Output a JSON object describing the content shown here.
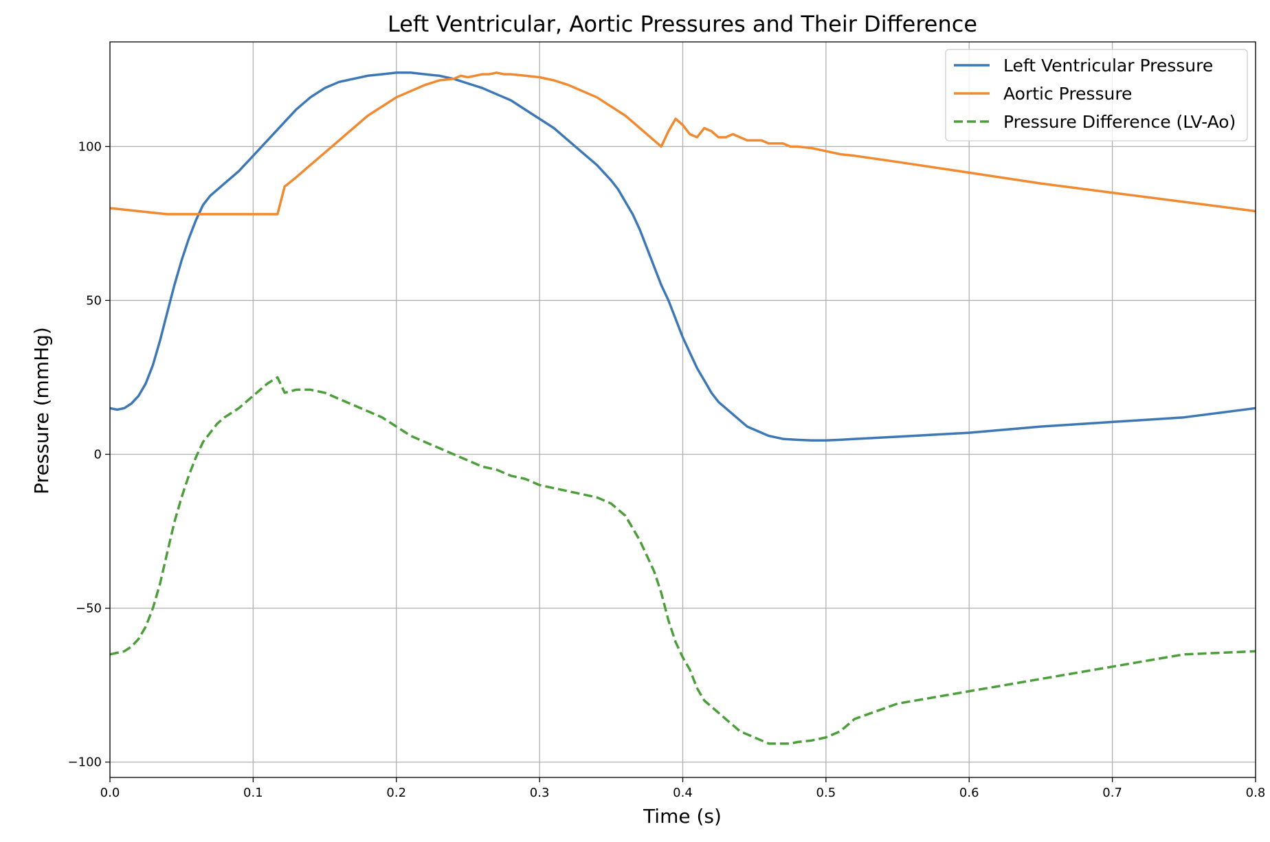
{
  "chart_data": {
    "type": "line",
    "title": "Left Ventricular, Aortic Pressures and Their Difference",
    "xlabel": "Time (s)",
    "ylabel": "Pressure (mmHg)",
    "xlim": [
      0.0,
      0.8
    ],
    "ylim": [
      -105,
      134
    ],
    "xticks": [
      0.0,
      0.1,
      0.2,
      0.3,
      0.4,
      0.5,
      0.6,
      0.7,
      0.8
    ],
    "xtick_labels": [
      "0.0",
      "0.1",
      "0.2",
      "0.3",
      "0.4",
      "0.5",
      "0.6",
      "0.7",
      "0.8"
    ],
    "yticks": [
      100,
      50,
      0,
      -50,
      -100
    ],
    "ytick_labels": [
      "100",
      "50",
      "0",
      "−50",
      "−100"
    ],
    "grid": true,
    "legend_position": "top-right",
    "series": [
      {
        "name": "Left Ventricular Pressure",
        "color": "#3d78b5",
        "style": "solid",
        "x": [
          0.0,
          0.005,
          0.01,
          0.015,
          0.02,
          0.025,
          0.03,
          0.035,
          0.04,
          0.045,
          0.05,
          0.055,
          0.06,
          0.065,
          0.07,
          0.075,
          0.08,
          0.09,
          0.1,
          0.11,
          0.12,
          0.13,
          0.14,
          0.15,
          0.16,
          0.17,
          0.18,
          0.19,
          0.2,
          0.21,
          0.22,
          0.23,
          0.24,
          0.25,
          0.26,
          0.27,
          0.28,
          0.29,
          0.3,
          0.31,
          0.32,
          0.33,
          0.34,
          0.35,
          0.355,
          0.36,
          0.365,
          0.37,
          0.375,
          0.38,
          0.385,
          0.39,
          0.395,
          0.4,
          0.405,
          0.41,
          0.415,
          0.42,
          0.425,
          0.43,
          0.435,
          0.44,
          0.445,
          0.45,
          0.455,
          0.46,
          0.465,
          0.47,
          0.48,
          0.49,
          0.5,
          0.51,
          0.52,
          0.55,
          0.6,
          0.65,
          0.7,
          0.75,
          0.8
        ],
        "y": [
          15,
          14.5,
          15,
          16.5,
          19,
          23,
          29,
          37,
          46,
          55,
          63,
          70,
          76,
          81,
          84,
          86,
          88,
          92,
          97,
          102,
          107,
          112,
          116,
          119,
          121,
          122,
          123,
          123.5,
          124,
          124,
          123.5,
          123,
          122,
          120.5,
          119,
          117,
          115,
          112,
          109,
          106,
          102,
          98,
          94,
          89,
          86,
          82,
          78,
          73,
          67,
          61,
          55,
          50,
          44,
          38,
          33,
          28,
          24,
          20,
          17,
          15,
          13,
          11,
          9,
          8,
          7,
          6,
          5.5,
          5,
          4.7,
          4.5,
          4.5,
          4.7,
          5,
          5.7,
          7,
          9,
          10.5,
          12,
          15
        ]
      },
      {
        "name": "Aortic Pressure",
        "color": "#ef8a31",
        "style": "solid",
        "x": [
          0.0,
          0.02,
          0.04,
          0.06,
          0.08,
          0.1,
          0.117,
          0.122,
          0.13,
          0.14,
          0.15,
          0.16,
          0.17,
          0.18,
          0.19,
          0.2,
          0.21,
          0.22,
          0.23,
          0.24,
          0.245,
          0.25,
          0.255,
          0.26,
          0.265,
          0.27,
          0.275,
          0.28,
          0.29,
          0.3,
          0.31,
          0.32,
          0.33,
          0.34,
          0.35,
          0.36,
          0.37,
          0.38,
          0.385,
          0.39,
          0.395,
          0.4,
          0.405,
          0.41,
          0.415,
          0.42,
          0.425,
          0.43,
          0.435,
          0.44,
          0.445,
          0.45,
          0.455,
          0.46,
          0.465,
          0.47,
          0.475,
          0.48,
          0.49,
          0.5,
          0.51,
          0.52,
          0.55,
          0.6,
          0.65,
          0.7,
          0.75,
          0.8
        ],
        "y": [
          80,
          79,
          78,
          78,
          78,
          78,
          78,
          87,
          90,
          94,
          98,
          102,
          106,
          110,
          113,
          116,
          118,
          120,
          121.5,
          122,
          123,
          122.5,
          123,
          123.5,
          123.5,
          124,
          123.5,
          123.5,
          123,
          122.5,
          121.5,
          120,
          118,
          116,
          113,
          110,
          106,
          102,
          100,
          105,
          109,
          107,
          104,
          103,
          106,
          105,
          103,
          103,
          104,
          103,
          102,
          102,
          102,
          101,
          101,
          101,
          100,
          100,
          99.5,
          98.5,
          97.5,
          97,
          95,
          91.5,
          88,
          85,
          82,
          79
        ]
      },
      {
        "name": "Pressure Difference (LV-Ao)",
        "color": "#4c9e3a",
        "style": "dashed",
        "x": [
          0.0,
          0.005,
          0.01,
          0.015,
          0.02,
          0.025,
          0.03,
          0.035,
          0.04,
          0.045,
          0.05,
          0.055,
          0.06,
          0.065,
          0.07,
          0.075,
          0.08,
          0.09,
          0.1,
          0.11,
          0.117,
          0.122,
          0.13,
          0.14,
          0.15,
          0.16,
          0.17,
          0.18,
          0.19,
          0.2,
          0.21,
          0.22,
          0.23,
          0.24,
          0.245,
          0.25,
          0.26,
          0.27,
          0.28,
          0.29,
          0.3,
          0.31,
          0.32,
          0.33,
          0.34,
          0.35,
          0.355,
          0.36,
          0.365,
          0.37,
          0.375,
          0.38,
          0.385,
          0.39,
          0.395,
          0.4,
          0.405,
          0.41,
          0.415,
          0.42,
          0.425,
          0.43,
          0.435,
          0.44,
          0.445,
          0.45,
          0.455,
          0.46,
          0.465,
          0.47,
          0.475,
          0.48,
          0.49,
          0.5,
          0.51,
          0.52,
          0.55,
          0.6,
          0.65,
          0.7,
          0.75,
          0.8
        ],
        "y": [
          -65,
          -64.5,
          -64,
          -62.5,
          -60,
          -56,
          -50,
          -42,
          -32,
          -22,
          -14,
          -7,
          -1,
          4,
          7,
          10,
          12,
          15,
          19,
          23,
          25,
          20,
          21,
          21,
          20,
          18,
          16,
          14,
          12,
          9,
          6,
          4,
          2,
          0,
          -1,
          -2,
          -4,
          -5,
          -7,
          -8,
          -10,
          -11,
          -12,
          -13,
          -14,
          -16,
          -18,
          -20,
          -24,
          -28,
          -33,
          -38,
          -45,
          -54,
          -61,
          -66,
          -70,
          -76,
          -80,
          -82,
          -84,
          -86,
          -88,
          -90,
          -91,
          -92,
          -93,
          -94,
          -94,
          -94,
          -94,
          -93.5,
          -93,
          -92,
          -90,
          -86,
          -81,
          -77,
          -73,
          -69,
          -65,
          -64
        ]
      }
    ]
  }
}
